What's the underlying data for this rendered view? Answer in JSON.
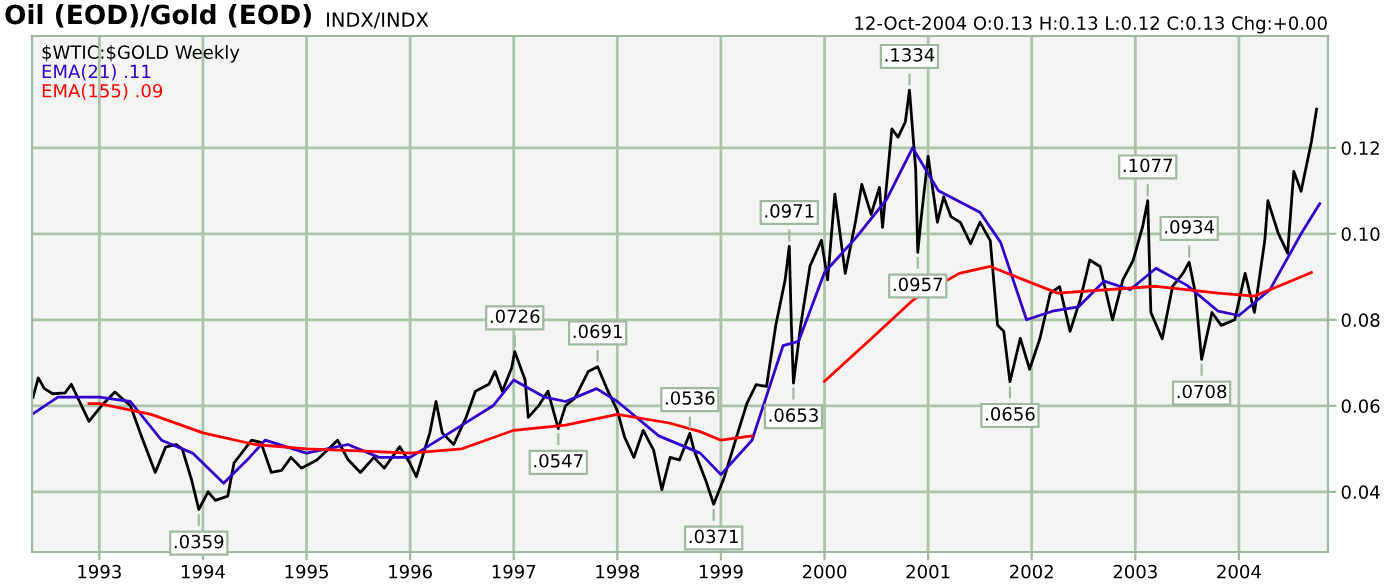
{
  "chart_data": {
    "type": "line",
    "title": "Oil (EOD)/Gold (EOD)",
    "subtitle": "INDX/INDX",
    "xlim": [
      1992.35,
      2004.86
    ],
    "xticks": [
      1993,
      1994,
      1995,
      1996,
      1997,
      1998,
      1999,
      2000,
      2001,
      2002,
      2003,
      2004
    ],
    "ylim": [
      0.026,
      0.146
    ],
    "yticks": [
      {
        "value": 0.04,
        "label": "0.04"
      },
      {
        "value": 0.06,
        "label": "0.06"
      },
      {
        "value": 0.08,
        "label": "0.08"
      },
      {
        "value": 0.1,
        "label": "0.10"
      },
      {
        "value": 0.12,
        "label": "0.12"
      }
    ],
    "grid": true,
    "legend": "top left",
    "series": [
      {
        "name": "$WTIC:$GOLD Weekly",
        "color": "#000000",
        "x": [
          1992.36,
          1992.41,
          1992.47,
          1992.55,
          1992.67,
          1992.73,
          1992.9,
          1993.02,
          1993.15,
          1993.3,
          1993.41,
          1993.54,
          1993.64,
          1993.74,
          1993.8,
          1993.89,
          1993.96,
          1994.05,
          1994.12,
          1994.24,
          1994.3,
          1994.47,
          1994.56,
          1994.66,
          1994.76,
          1994.85,
          1994.95,
          1995.1,
          1995.3,
          1995.4,
          1995.52,
          1995.65,
          1995.75,
          1995.9,
          1995.99,
          1996.06,
          1996.19,
          1996.25,
          1996.31,
          1996.42,
          1996.54,
          1996.63,
          1996.76,
          1996.82,
          1996.89,
          1996.98,
          1997.01,
          1997.11,
          1997.14,
          1997.24,
          1997.33,
          1997.43,
          1997.5,
          1997.59,
          1997.72,
          1997.81,
          1997.91,
          1998.0,
          1998.07,
          1998.16,
          1998.25,
          1998.35,
          1998.43,
          1998.51,
          1998.6,
          1998.7,
          1998.74,
          1998.86,
          1998.93,
          1999.03,
          1999.15,
          1999.25,
          1999.34,
          1999.44,
          1999.53,
          1999.62,
          1999.66,
          1999.68,
          1999.7,
          1999.77,
          1999.86,
          1999.97,
          2000.03,
          2000.1,
          2000.2,
          2000.3,
          2000.36,
          2000.45,
          2000.53,
          2000.56,
          2000.65,
          2000.71,
          2000.78,
          2000.82,
          2000.88,
          2000.9,
          2000.93,
          2001.0,
          2001.09,
          2001.15,
          2001.22,
          2001.31,
          2001.41,
          2001.5,
          2001.6,
          2001.67,
          2001.73,
          2001.79,
          2001.89,
          2001.98,
          2002.08,
          2002.18,
          2002.27,
          2002.37,
          2002.47,
          2002.56,
          2002.66,
          2002.78,
          2002.88,
          2002.98,
          2003.07,
          2003.12,
          2003.15,
          2003.26,
          2003.36,
          2003.46,
          2003.52,
          2003.58,
          2003.64,
          2003.74,
          2003.83,
          2003.96,
          2004.06,
          2004.15,
          2004.25,
          2004.28,
          2004.38,
          2004.47,
          2004.53,
          2004.6,
          2004.7,
          2004.75
        ],
        "values": [
          0.062,
          0.0665,
          0.064,
          0.0628,
          0.063,
          0.065,
          0.0564,
          0.06,
          0.0632,
          0.06,
          0.0527,
          0.0445,
          0.0504,
          0.051,
          0.05,
          0.0428,
          0.0359,
          0.04,
          0.038,
          0.039,
          0.0467,
          0.052,
          0.0515,
          0.0445,
          0.045,
          0.048,
          0.0455,
          0.0474,
          0.052,
          0.0475,
          0.0445,
          0.048,
          0.0455,
          0.0505,
          0.047,
          0.0435,
          0.0537,
          0.061,
          0.0537,
          0.051,
          0.0573,
          0.0634,
          0.065,
          0.068,
          0.0634,
          0.0688,
          0.0726,
          0.066,
          0.0573,
          0.06,
          0.0634,
          0.0547,
          0.06,
          0.0618,
          0.068,
          0.0691,
          0.0634,
          0.0589,
          0.0527,
          0.048,
          0.0543,
          0.0497,
          0.0405,
          0.048,
          0.0474,
          0.0536,
          0.0497,
          0.0422,
          0.0371,
          0.0432,
          0.0527,
          0.0605,
          0.0649,
          0.0645,
          0.0788,
          0.0893,
          0.0971,
          0.0787,
          0.0653,
          0.0787,
          0.0925,
          0.0985,
          0.0893,
          0.1092,
          0.0908,
          0.103,
          0.1115,
          0.1045,
          0.1108,
          0.1015,
          0.1244,
          0.1225,
          0.126,
          0.1334,
          0.115,
          0.0957,
          0.103,
          0.118,
          0.1027,
          0.1086,
          0.104,
          0.1027,
          0.0977,
          0.1027,
          0.0984,
          0.0788,
          0.0773,
          0.0656,
          0.0757,
          0.0685,
          0.0757,
          0.0862,
          0.0877,
          0.0773,
          0.0848,
          0.0939,
          0.0924,
          0.08,
          0.0893,
          0.0939,
          0.1016,
          0.1077,
          0.0817,
          0.0756,
          0.0878,
          0.0908,
          0.0934,
          0.0862,
          0.0708,
          0.0817,
          0.0787,
          0.08,
          0.0908,
          0.0817,
          0.0985,
          0.1077,
          0.1001,
          0.0955,
          0.1145,
          0.1099,
          0.1214,
          0.129
        ]
      },
      {
        "name": "EMA(21) .11",
        "color": "#3300cc",
        "x": [
          1992.35,
          1992.6,
          1993.0,
          1993.3,
          1993.6,
          1993.9,
          1994.2,
          1994.45,
          1994.6,
          1995.0,
          1995.4,
          1995.7,
          1996.0,
          1996.4,
          1996.8,
          1997.0,
          1997.3,
          1997.5,
          1997.8,
          1998.0,
          1998.4,
          1998.8,
          1999.0,
          1999.3,
          1999.6,
          1999.75,
          2000.0,
          2000.3,
          2000.6,
          2000.85,
          2001.1,
          2001.5,
          2001.7,
          2001.95,
          2002.2,
          2002.45,
          2002.7,
          2002.95,
          2003.2,
          2003.5,
          2003.8,
          2004.0,
          2004.3,
          2004.6,
          2004.78
        ],
        "values": [
          0.058,
          0.062,
          0.062,
          0.061,
          0.052,
          0.049,
          0.042,
          0.048,
          0.052,
          0.049,
          0.051,
          0.048,
          0.048,
          0.054,
          0.06,
          0.066,
          0.062,
          0.061,
          0.064,
          0.061,
          0.053,
          0.049,
          0.044,
          0.052,
          0.074,
          0.075,
          0.091,
          0.099,
          0.108,
          0.12,
          0.11,
          0.105,
          0.098,
          0.08,
          0.082,
          0.083,
          0.089,
          0.087,
          0.092,
          0.088,
          0.082,
          0.081,
          0.087,
          0.1,
          0.107
        ]
      },
      {
        "name": "EMA(155) .09",
        "color": "#ff0000",
        "x": [
          1992.9,
          1993.0,
          1993.5,
          1994.0,
          1994.5,
          1995.0,
          1995.5,
          1996.0,
          1996.5,
          1997.0,
          1997.5,
          1998.0,
          1998.5,
          1998.8,
          1999.0,
          1999.3,
          1999.6,
          2000.0,
          2000.45,
          2000.86,
          2001.3,
          2001.6,
          2002.25,
          2003.2,
          2003.8,
          2004.15,
          2004.7
        ],
        "values": [
          0.0605,
          0.0605,
          0.058,
          0.0537,
          0.051,
          0.05,
          0.0495,
          0.049,
          0.05,
          0.0543,
          0.0555,
          0.058,
          0.056,
          0.054,
          0.052,
          0.053,
          null,
          0.0657,
          0.0756,
          0.0847,
          0.0908,
          0.0924,
          0.0862,
          0.0878,
          0.0862,
          0.0855,
          0.091
        ]
      }
    ],
    "annotations": [
      "12-Oct-2004 O:0.13 H:0.13 L:0.12 C:0.13 Chg:+0.00",
      {
        "text": ".0359",
        "x": 1993.96,
        "y": 0.0359
      },
      {
        "text": ".0726",
        "x": 1997.01,
        "y": 0.0726
      },
      {
        "text": ".0547",
        "x": 1997.43,
        "y": 0.0547
      },
      {
        "text": ".0691",
        "x": 1997.81,
        "y": 0.0691
      },
      {
        "text": ".0536",
        "x": 1998.7,
        "y": 0.0536
      },
      {
        "text": ".0371",
        "x": 1998.93,
        "y": 0.0371
      },
      {
        "text": ".0971",
        "x": 1999.66,
        "y": 0.0971
      },
      {
        "text": ".0653",
        "x": 1999.7,
        "y": 0.0653
      },
      {
        "text": ".1334",
        "x": 2000.82,
        "y": 0.1334
      },
      {
        "text": ".0957",
        "x": 2000.9,
        "y": 0.0957
      },
      {
        "text": ".0656",
        "x": 2001.79,
        "y": 0.0656
      },
      {
        "text": ".1077",
        "x": 2003.12,
        "y": 0.1077
      },
      {
        "text": ".0934",
        "x": 2003.52,
        "y": 0.0934
      },
      {
        "text": ".0708",
        "x": 2003.64,
        "y": 0.0708
      }
    ]
  }
}
